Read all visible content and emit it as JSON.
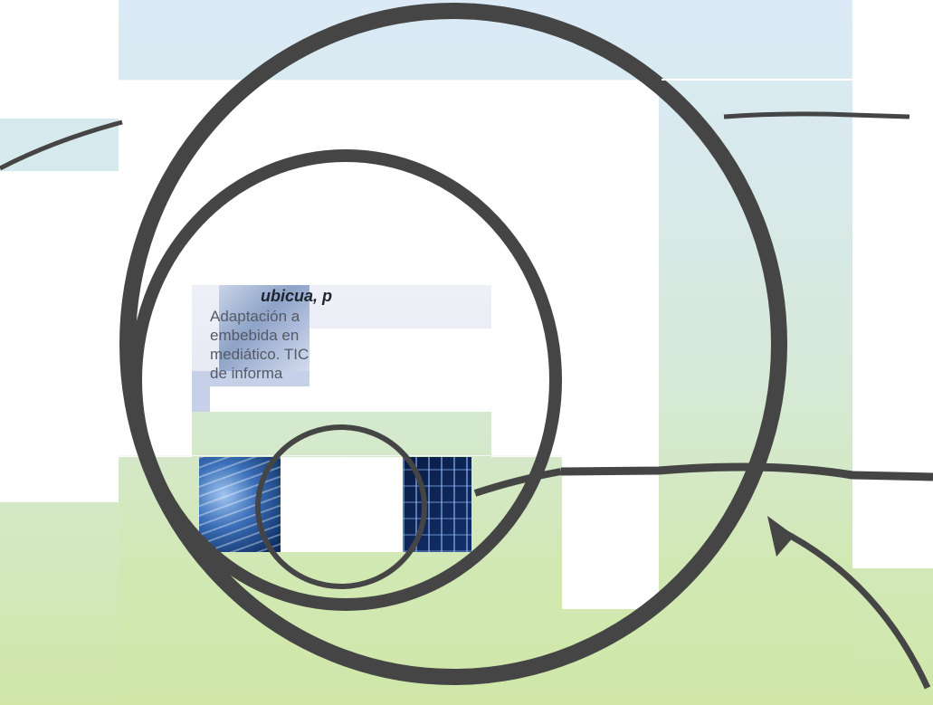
{
  "slide": {
    "heading_word": "ubicua",
    "heading_tail": ", p",
    "body_lines": [
      "Adaptación a",
      "embebida en",
      "mediático. TIC",
      "de informa"
    ]
  }
}
